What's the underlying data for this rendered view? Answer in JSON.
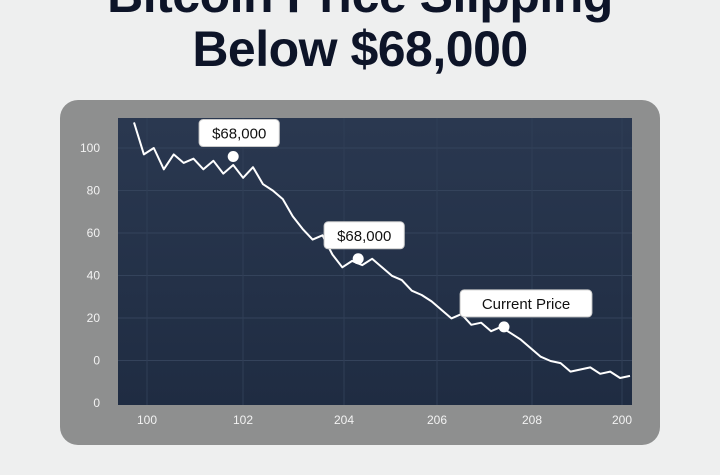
{
  "chart_data": {
    "type": "line",
    "title_line1": "Bitcoin Price Slipping",
    "title_line2": "Below $68,000",
    "xlabel": "",
    "ylabel": "",
    "x_tick_labels": [
      "100",
      "102",
      "204",
      "206",
      "208",
      "200"
    ],
    "y_tick_labels": [
      "100",
      "80",
      "60",
      "40",
      "20",
      "0",
      "0"
    ],
    "ylim": [
      -20,
      100
    ],
    "grid": true,
    "series": [
      {
        "name": "price",
        "values": [
          112,
          97,
          100,
          90,
          97,
          93,
          95,
          90,
          94,
          88,
          92,
          86,
          91,
          83,
          80,
          76,
          68,
          62,
          57,
          59,
          50,
          44,
          47,
          45,
          48,
          44,
          40,
          38,
          33,
          31,
          28,
          24,
          20,
          22,
          17,
          18,
          14,
          16,
          13,
          10,
          6,
          2,
          0,
          -1,
          -5,
          -4,
          -3,
          -6,
          -5,
          -8,
          -7
        ]
      }
    ],
    "annotations": [
      {
        "label": "$68,000",
        "index": 10,
        "value": 96
      },
      {
        "label": "$68,000",
        "index": 22.6,
        "value": 48
      },
      {
        "label": "Current Price",
        "index": 37.3,
        "value": 16
      }
    ],
    "colors": {
      "plot_bg": "#243248",
      "card_bg": "#8e8f8f",
      "line": "#ffffff"
    }
  }
}
